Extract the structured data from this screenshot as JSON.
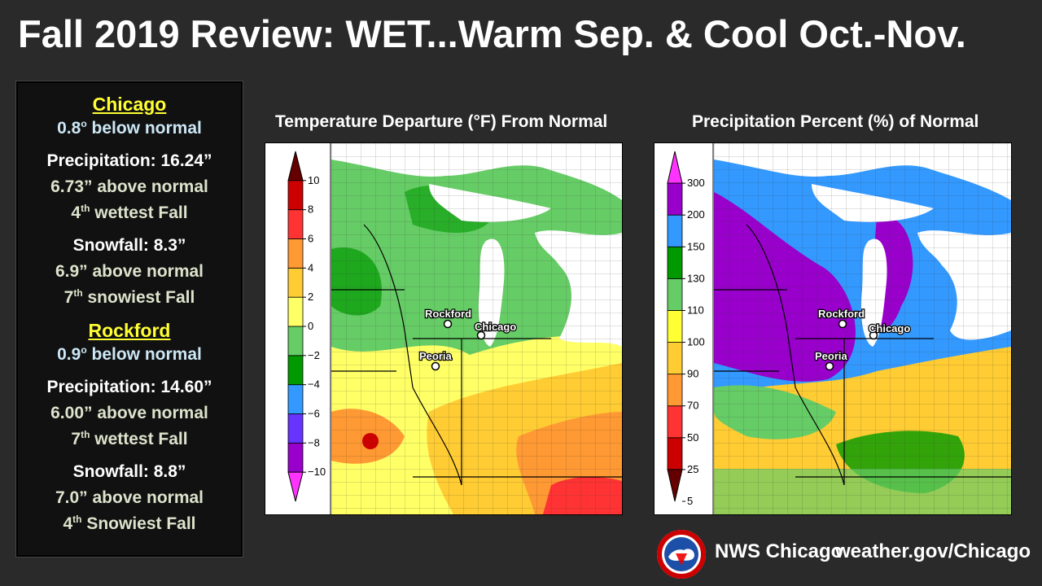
{
  "title": "Fall 2019 Review:  WET...Warm Sep. & Cool Oct.-Nov.",
  "sidebar": {
    "chicago": {
      "name": "Chicago",
      "temp_value": "0.8",
      "temp_sup": "o",
      "temp_text": " below normal",
      "precip": "Precipitation:  16.24”",
      "precip_above": "6.73” above normal",
      "precip_rank_num": "4",
      "precip_rank_sup": "th",
      "precip_rank_text": " wettest Fall",
      "snow": "Snowfall: 8.3”",
      "snow_above": "6.9” above normal",
      "snow_rank_num": "7",
      "snow_rank_sup": "th",
      "snow_rank_text": " snowiest Fall"
    },
    "rockford": {
      "name": "Rockford",
      "temp_value": "0.9",
      "temp_sup": "o",
      "temp_text": " below normal",
      "precip": "Precipitation:  14.60”",
      "precip_above": "6.00” above normal",
      "precip_rank_num": "7",
      "precip_rank_sup": "th",
      "precip_rank_text": " wettest Fall",
      "snow": "Snowfall: 8.8”",
      "snow_above": "7.0” above normal",
      "snow_rank_num": "4",
      "snow_rank_sup": "th",
      "snow_rank_text": " Snowiest Fall"
    }
  },
  "temp_map": {
    "title": "Temperature Departure (°F)  From Normal",
    "legend_ticks": [
      "10",
      "8",
      "6",
      "4",
      "2",
      "0",
      "−2",
      "−4",
      "−6",
      "−8",
      "−10"
    ],
    "legend_colors": [
      "#ff33ff",
      "#9900cc",
      "#6633ff",
      "#3399ff",
      "#009900",
      "#66cc66",
      "#ffff66",
      "#ffcc33",
      "#ff9933",
      "#ff3333",
      "#cc0000",
      "#660000"
    ],
    "city_labels": [
      "Rockford",
      "Chicago",
      "Peoria"
    ]
  },
  "precip_map": {
    "title": "Precipitation Percent (%) of Normal",
    "legend_ticks": [
      "300",
      "200",
      "150",
      "130",
      "110",
      "100",
      "90",
      "70",
      "50",
      "25",
      "5"
    ],
    "legend_colors": [
      "#660000",
      "#cc0000",
      "#ff3333",
      "#ff9933",
      "#ffcc33",
      "#ffff33",
      "#66cc66",
      "#009900",
      "#3399ff",
      "#9900cc",
      "#ff33ff"
    ],
    "city_labels": [
      "Rockford",
      "Chicago",
      "Peoria"
    ]
  },
  "footer": {
    "office": "NWS Chicago",
    "url": "weather.gov/Chicago",
    "logo_icon": "nws-logo-icon"
  }
}
